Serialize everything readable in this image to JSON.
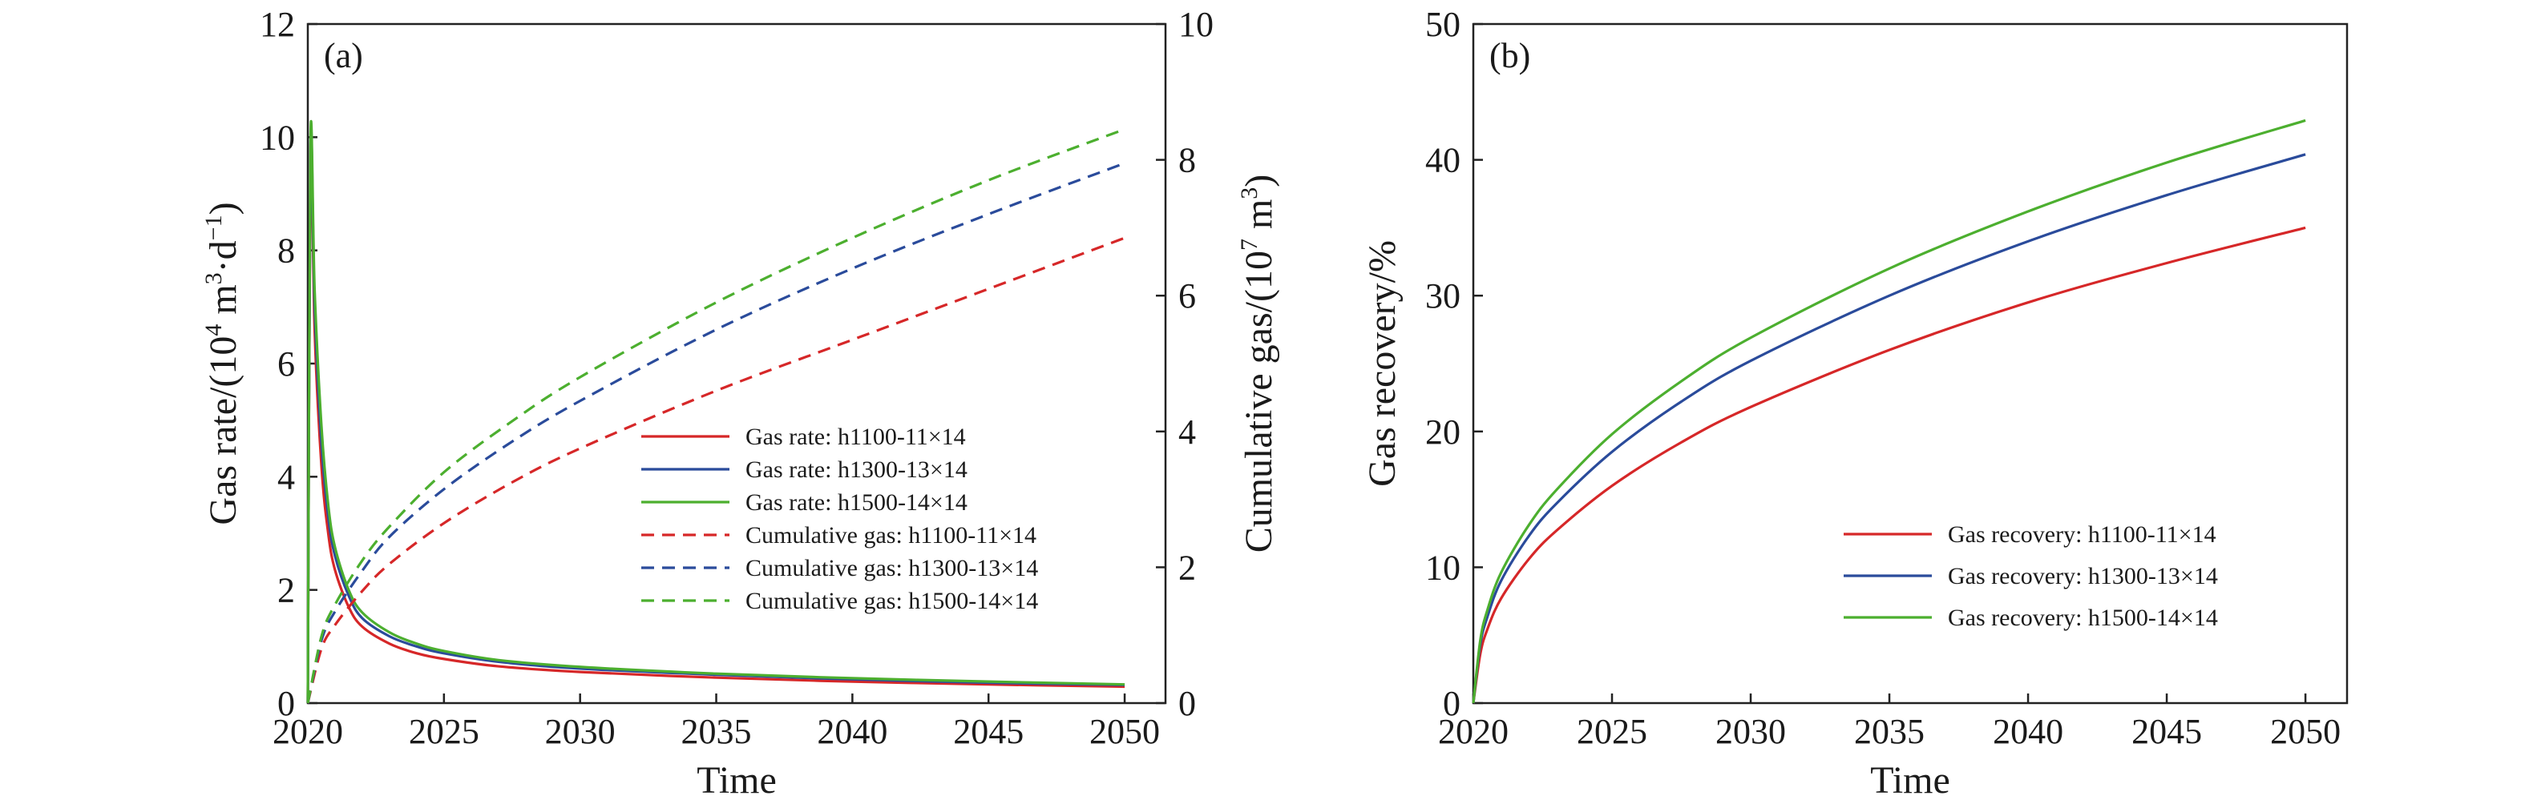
{
  "chart_data": [
    {
      "type": "line",
      "panel_label": "(a)",
      "xlabel": "Time",
      "ylabel_prefix": "Gas rate/(10",
      "ylabel_sup1": "4",
      "ylabel_mid": " m",
      "ylabel_sup2": "3",
      "ylabel_mid2": "·d",
      "ylabel_sup3": "−1",
      "ylabel_suffix": ")",
      "y2label_prefix": "Cumulative gas/(10",
      "y2label_sup1": "7",
      "y2label_mid": " m",
      "y2label_sup2": "3",
      "y2label_suffix": ")",
      "xlim": [
        2020,
        2051.5
      ],
      "ylim": [
        0,
        12
      ],
      "y2lim": [
        0,
        10
      ],
      "xticks": [
        "2020",
        "2025",
        "2030",
        "2035",
        "2040",
        "2045",
        "2050"
      ],
      "yticks": [
        "0",
        "2",
        "4",
        "6",
        "8",
        "10",
        "12"
      ],
      "y2ticks": [
        "0",
        "2",
        "4",
        "6",
        "8",
        "10"
      ],
      "legend_position": "center-right",
      "series": [
        {
          "name": "Gas rate: h1100-11×14",
          "color": "#d62728",
          "dash": "solid",
          "axis": "left",
          "x": [
            2020.0,
            2020.1,
            2020.25,
            2020.5,
            2020.75,
            2021.0,
            2021.5,
            2022.0,
            2023.0,
            2024.0,
            2025.0,
            2027.0,
            2030.0,
            2035.0,
            2040.0,
            2045.0,
            2050.0
          ],
          "y": [
            0.0,
            9.8,
            6.6,
            4.2,
            3.0,
            2.35,
            1.7,
            1.35,
            1.05,
            0.88,
            0.78,
            0.65,
            0.55,
            0.45,
            0.38,
            0.33,
            0.29
          ]
        },
        {
          "name": "Gas rate: h1300-13×14",
          "color": "#2a4b9b",
          "dash": "solid",
          "axis": "left",
          "x": [
            2020.0,
            2020.1,
            2020.25,
            2020.5,
            2020.75,
            2021.0,
            2021.5,
            2022.0,
            2023.0,
            2024.0,
            2025.0,
            2027.0,
            2030.0,
            2035.0,
            2040.0,
            2045.0,
            2050.0
          ],
          "y": [
            0.0,
            9.9,
            7.0,
            4.6,
            3.3,
            2.6,
            1.9,
            1.5,
            1.18,
            1.0,
            0.88,
            0.73,
            0.61,
            0.5,
            0.42,
            0.36,
            0.32
          ]
        },
        {
          "name": "Gas rate: h1500-14×14",
          "color": "#4caf2f",
          "dash": "solid",
          "axis": "left",
          "x": [
            2020.0,
            2020.1,
            2020.25,
            2020.5,
            2020.75,
            2021.0,
            2021.5,
            2022.0,
            2023.0,
            2024.0,
            2025.0,
            2027.0,
            2030.0,
            2035.0,
            2040.0,
            2045.0,
            2050.0
          ],
          "y": [
            0.0,
            10.0,
            7.3,
            4.9,
            3.5,
            2.75,
            2.0,
            1.6,
            1.25,
            1.05,
            0.92,
            0.76,
            0.64,
            0.52,
            0.44,
            0.38,
            0.33
          ]
        },
        {
          "name": "Cumulative gas: h1100-11×14",
          "color": "#d62728",
          "dash": "dashed",
          "axis": "right",
          "x": [
            2020.0,
            2020.5,
            2021.0,
            2022.0,
            2023.0,
            2025.0,
            2027.5,
            2030.0,
            2035.0,
            2040.0,
            2045.0,
            2050.0
          ],
          "y": [
            0.0,
            0.8,
            1.15,
            1.65,
            2.05,
            2.65,
            3.25,
            3.75,
            4.6,
            5.35,
            6.1,
            6.85
          ]
        },
        {
          "name": "Cumulative gas: h1300-13×14",
          "color": "#2a4b9b",
          "dash": "dashed",
          "axis": "right",
          "x": [
            2020.0,
            2020.5,
            2021.0,
            2022.0,
            2023.0,
            2025.0,
            2027.5,
            2030.0,
            2035.0,
            2040.0,
            2045.0,
            2050.0
          ],
          "y": [
            0.0,
            0.92,
            1.35,
            1.95,
            2.45,
            3.15,
            3.85,
            4.45,
            5.5,
            6.4,
            7.2,
            7.95
          ]
        },
        {
          "name": "Cumulative gas: h1500-14×14",
          "color": "#4caf2f",
          "dash": "dashed",
          "axis": "right",
          "x": [
            2020.0,
            2020.5,
            2021.0,
            2022.0,
            2023.0,
            2025.0,
            2027.5,
            2030.0,
            2035.0,
            2040.0,
            2045.0,
            2050.0
          ],
          "y": [
            0.0,
            0.98,
            1.45,
            2.1,
            2.6,
            3.4,
            4.15,
            4.8,
            5.9,
            6.85,
            7.7,
            8.45
          ]
        }
      ]
    },
    {
      "type": "line",
      "panel_label": "(b)",
      "xlabel": "Time",
      "ylabel": "Gas recovery/%",
      "xlim": [
        2020,
        2051.5
      ],
      "ylim": [
        0,
        50
      ],
      "xticks": [
        "2020",
        "2025",
        "2030",
        "2035",
        "2040",
        "2045",
        "2050"
      ],
      "yticks": [
        "0",
        "10",
        "20",
        "30",
        "40",
        "50"
      ],
      "legend_position": "lower-right",
      "series": [
        {
          "name": "Gas recovery: h1100-11×14",
          "color": "#d62728",
          "dash": "solid",
          "x": [
            2020.0,
            2020.25,
            2020.5,
            2021.0,
            2022.0,
            2023.0,
            2025.0,
            2027.5,
            2030.0,
            2035.0,
            2040.0,
            2045.0,
            2050.0
          ],
          "y": [
            0.0,
            3.6,
            5.4,
            7.7,
            10.6,
            12.7,
            16.0,
            19.2,
            21.8,
            26.0,
            29.5,
            32.4,
            35.0
          ]
        },
        {
          "name": "Gas recovery: h1300-13×14",
          "color": "#2a4b9b",
          "dash": "solid",
          "x": [
            2020.0,
            2020.25,
            2020.5,
            2021.0,
            2022.0,
            2023.0,
            2025.0,
            2027.5,
            2030.0,
            2035.0,
            2040.0,
            2045.0,
            2050.0
          ],
          "y": [
            0.0,
            4.3,
            6.3,
            9.0,
            12.3,
            14.7,
            18.5,
            22.2,
            25.2,
            30.0,
            34.0,
            37.4,
            40.4
          ]
        },
        {
          "name": "Gas recovery: h1500-14×14",
          "color": "#4caf2f",
          "dash": "solid",
          "x": [
            2020.0,
            2020.25,
            2020.5,
            2021.0,
            2022.0,
            2023.0,
            2025.0,
            2027.5,
            2030.0,
            2035.0,
            2040.0,
            2045.0,
            2050.0
          ],
          "y": [
            0.0,
            4.6,
            6.8,
            9.6,
            13.1,
            15.7,
            19.8,
            23.7,
            26.9,
            32.0,
            36.2,
            39.8,
            42.9
          ]
        }
      ]
    }
  ]
}
